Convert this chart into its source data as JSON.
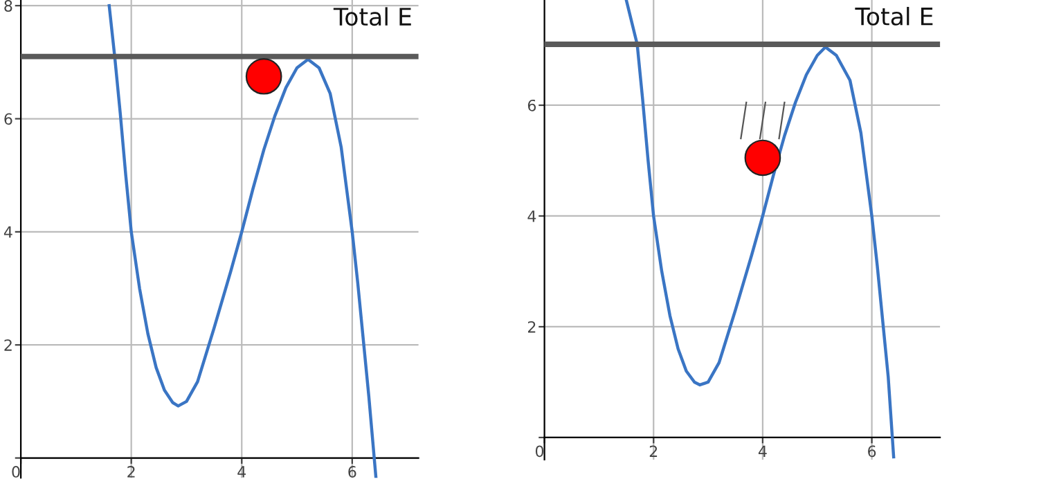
{
  "chart_data": [
    {
      "type": "line",
      "x": [
        1.6,
        1.7,
        1.8,
        1.9,
        2.0,
        2.15,
        2.3,
        2.45,
        2.6,
        2.75,
        2.85,
        3.0,
        3.2,
        3.5,
        3.8,
        4.0,
        4.2,
        4.4,
        4.6,
        4.8,
        5.0,
        5.2,
        5.4,
        5.6,
        5.8,
        6.0,
        6.1,
        6.2,
        6.3,
        6.43
      ],
      "series": [
        {
          "color": "#3a75c4",
          "values": [
            8.0,
            7.1,
            6.1,
            5.0,
            4.0,
            3.0,
            2.2,
            1.6,
            1.2,
            0.98,
            0.92,
            1.0,
            1.35,
            2.3,
            3.3,
            4.0,
            4.75,
            5.45,
            6.05,
            6.55,
            6.9,
            7.05,
            6.9,
            6.45,
            5.5,
            4.0,
            3.1,
            2.1,
            1.1,
            -0.35
          ]
        },
        {
          "type": "scatter",
          "x": [
            4.4
          ],
          "color": "#ff0000",
          "values": [
            6.75
          ]
        }
      ],
      "ref_lines": [
        {
          "axis": "y",
          "value": 7.1,
          "label": "Total E",
          "color": "#5a5a5a"
        }
      ],
      "xlim": [
        0,
        7.2
      ],
      "ylim": [
        -0.35,
        8.1
      ],
      "xticks": [
        0,
        2,
        4,
        6
      ],
      "yticks": [
        {
          "value": 0,
          "label": null
        },
        2,
        4,
        6,
        8
      ],
      "grid": true
    },
    {
      "type": "line",
      "x": [
        1.5,
        1.7,
        1.8,
        1.9,
        2.0,
        2.15,
        2.3,
        2.45,
        2.6,
        2.75,
        2.85,
        3.0,
        3.2,
        3.5,
        3.8,
        4.0,
        4.2,
        4.4,
        4.6,
        4.8,
        5.0,
        5.15,
        5.35,
        5.6,
        5.8,
        6.0,
        6.1,
        6.2,
        6.3,
        6.4
      ],
      "series": [
        {
          "color": "#3a75c4",
          "values": [
            7.9,
            7.1,
            6.1,
            5.0,
            4.0,
            3.0,
            2.2,
            1.6,
            1.2,
            1.0,
            0.95,
            1.0,
            1.35,
            2.3,
            3.3,
            4.0,
            4.75,
            5.45,
            6.05,
            6.55,
            6.9,
            7.05,
            6.9,
            6.45,
            5.5,
            4.0,
            3.1,
            2.1,
            1.1,
            -0.35
          ]
        },
        {
          "type": "scatter",
          "x": [
            4.0
          ],
          "color": "#ff0000",
          "values": [
            5.05
          ]
        }
      ],
      "ref_lines": [
        {
          "axis": "y",
          "value": 7.1,
          "label": "Total E",
          "color": "#5a5a5a"
        }
      ],
      "xlim": [
        0,
        7.25
      ],
      "ylim": [
        -0.4,
        7.9
      ],
      "xticks": [
        0,
        2,
        4,
        6
      ],
      "yticks": [
        {
          "value": 0,
          "label": null
        },
        2,
        4,
        6
      ],
      "grid": true
    }
  ]
}
